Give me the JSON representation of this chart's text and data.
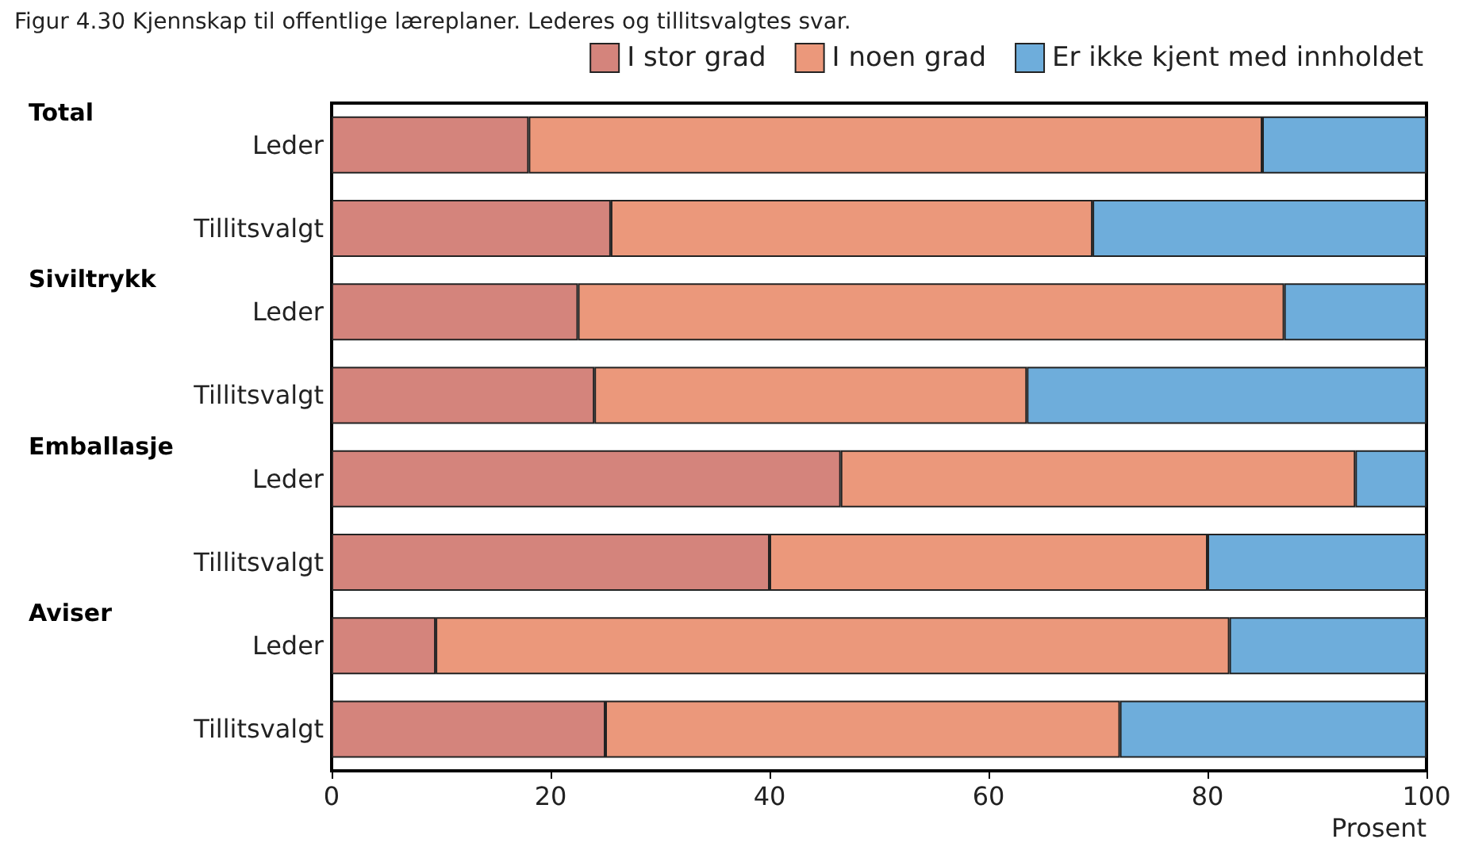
{
  "chart_data": {
    "type": "bar",
    "orientation": "horizontal",
    "stacked": true,
    "title": "Figur 4.30 Kjennskap til offentlige læreplaner. Lederes og tillitsvalgtes svar.",
    "xlabel": "Prosent",
    "categories": [
      "Leder",
      "Tillitsvalgt",
      "Leder",
      "Tillitsvalgt",
      "Leder",
      "Tillitsvalgt",
      "Leder",
      "Tillitsvalgt"
    ],
    "annotations": [
      "Total",
      "Siviltrykk",
      "Emballasje",
      "Aviser"
    ],
    "series": [
      {
        "name": "I stor grad",
        "color": "#d4847c",
        "values": [
          18,
          25.5,
          22.5,
          24,
          46.5,
          40,
          9.5,
          25
        ]
      },
      {
        "name": "I noen grad",
        "color": "#eb987b",
        "values": [
          67,
          44,
          64.5,
          39.5,
          47,
          40,
          72.5,
          47
        ]
      },
      {
        "name": "Er ikke kjent med innholdet",
        "color": "#6eaddb",
        "values": [
          15,
          30.5,
          13,
          36.5,
          6.5,
          20,
          18,
          28
        ]
      }
    ],
    "xlim": [
      0,
      100
    ],
    "xticks": [
      0,
      20,
      40,
      60,
      80,
      100
    ],
    "grid": false,
    "legend": "top right"
  }
}
